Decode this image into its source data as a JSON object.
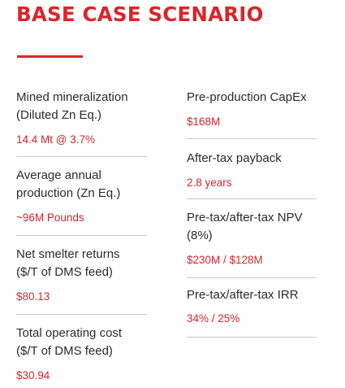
{
  "title": "BASE CASE SCENARIO",
  "colors": {
    "accent": "#d8262b",
    "text": "#2b2b2b",
    "divider": "#c9c9c9"
  },
  "left_column": [
    {
      "label_lines": [
        "Mined mineralization",
        "(Diluted Zn Eq.)"
      ],
      "value": "14.4 Mt @ 3.7%"
    },
    {
      "label_lines": [
        "Average annual",
        "production (Zn Eq.)"
      ],
      "value": "~96M Pounds"
    },
    {
      "label_lines": [
        "Net smelter returns",
        "($/T of DMS feed)"
      ],
      "value": "$80.13"
    },
    {
      "label_lines": [
        "Total operating cost",
        "($/T of DMS feed)"
      ],
      "value": "$30.94"
    }
  ],
  "right_column": [
    {
      "label_lines": [
        "Pre-production CapEx"
      ],
      "value": "$168M"
    },
    {
      "label_lines": [
        "After-tax payback"
      ],
      "value": "2.8 years"
    },
    {
      "label_lines": [
        "Pre-tax/after-tax NPV",
        "(8%)"
      ],
      "value": "$230M / $128M"
    },
    {
      "label_lines": [
        "Pre-tax/after-tax IRR"
      ],
      "value": "34% / 25%"
    }
  ]
}
